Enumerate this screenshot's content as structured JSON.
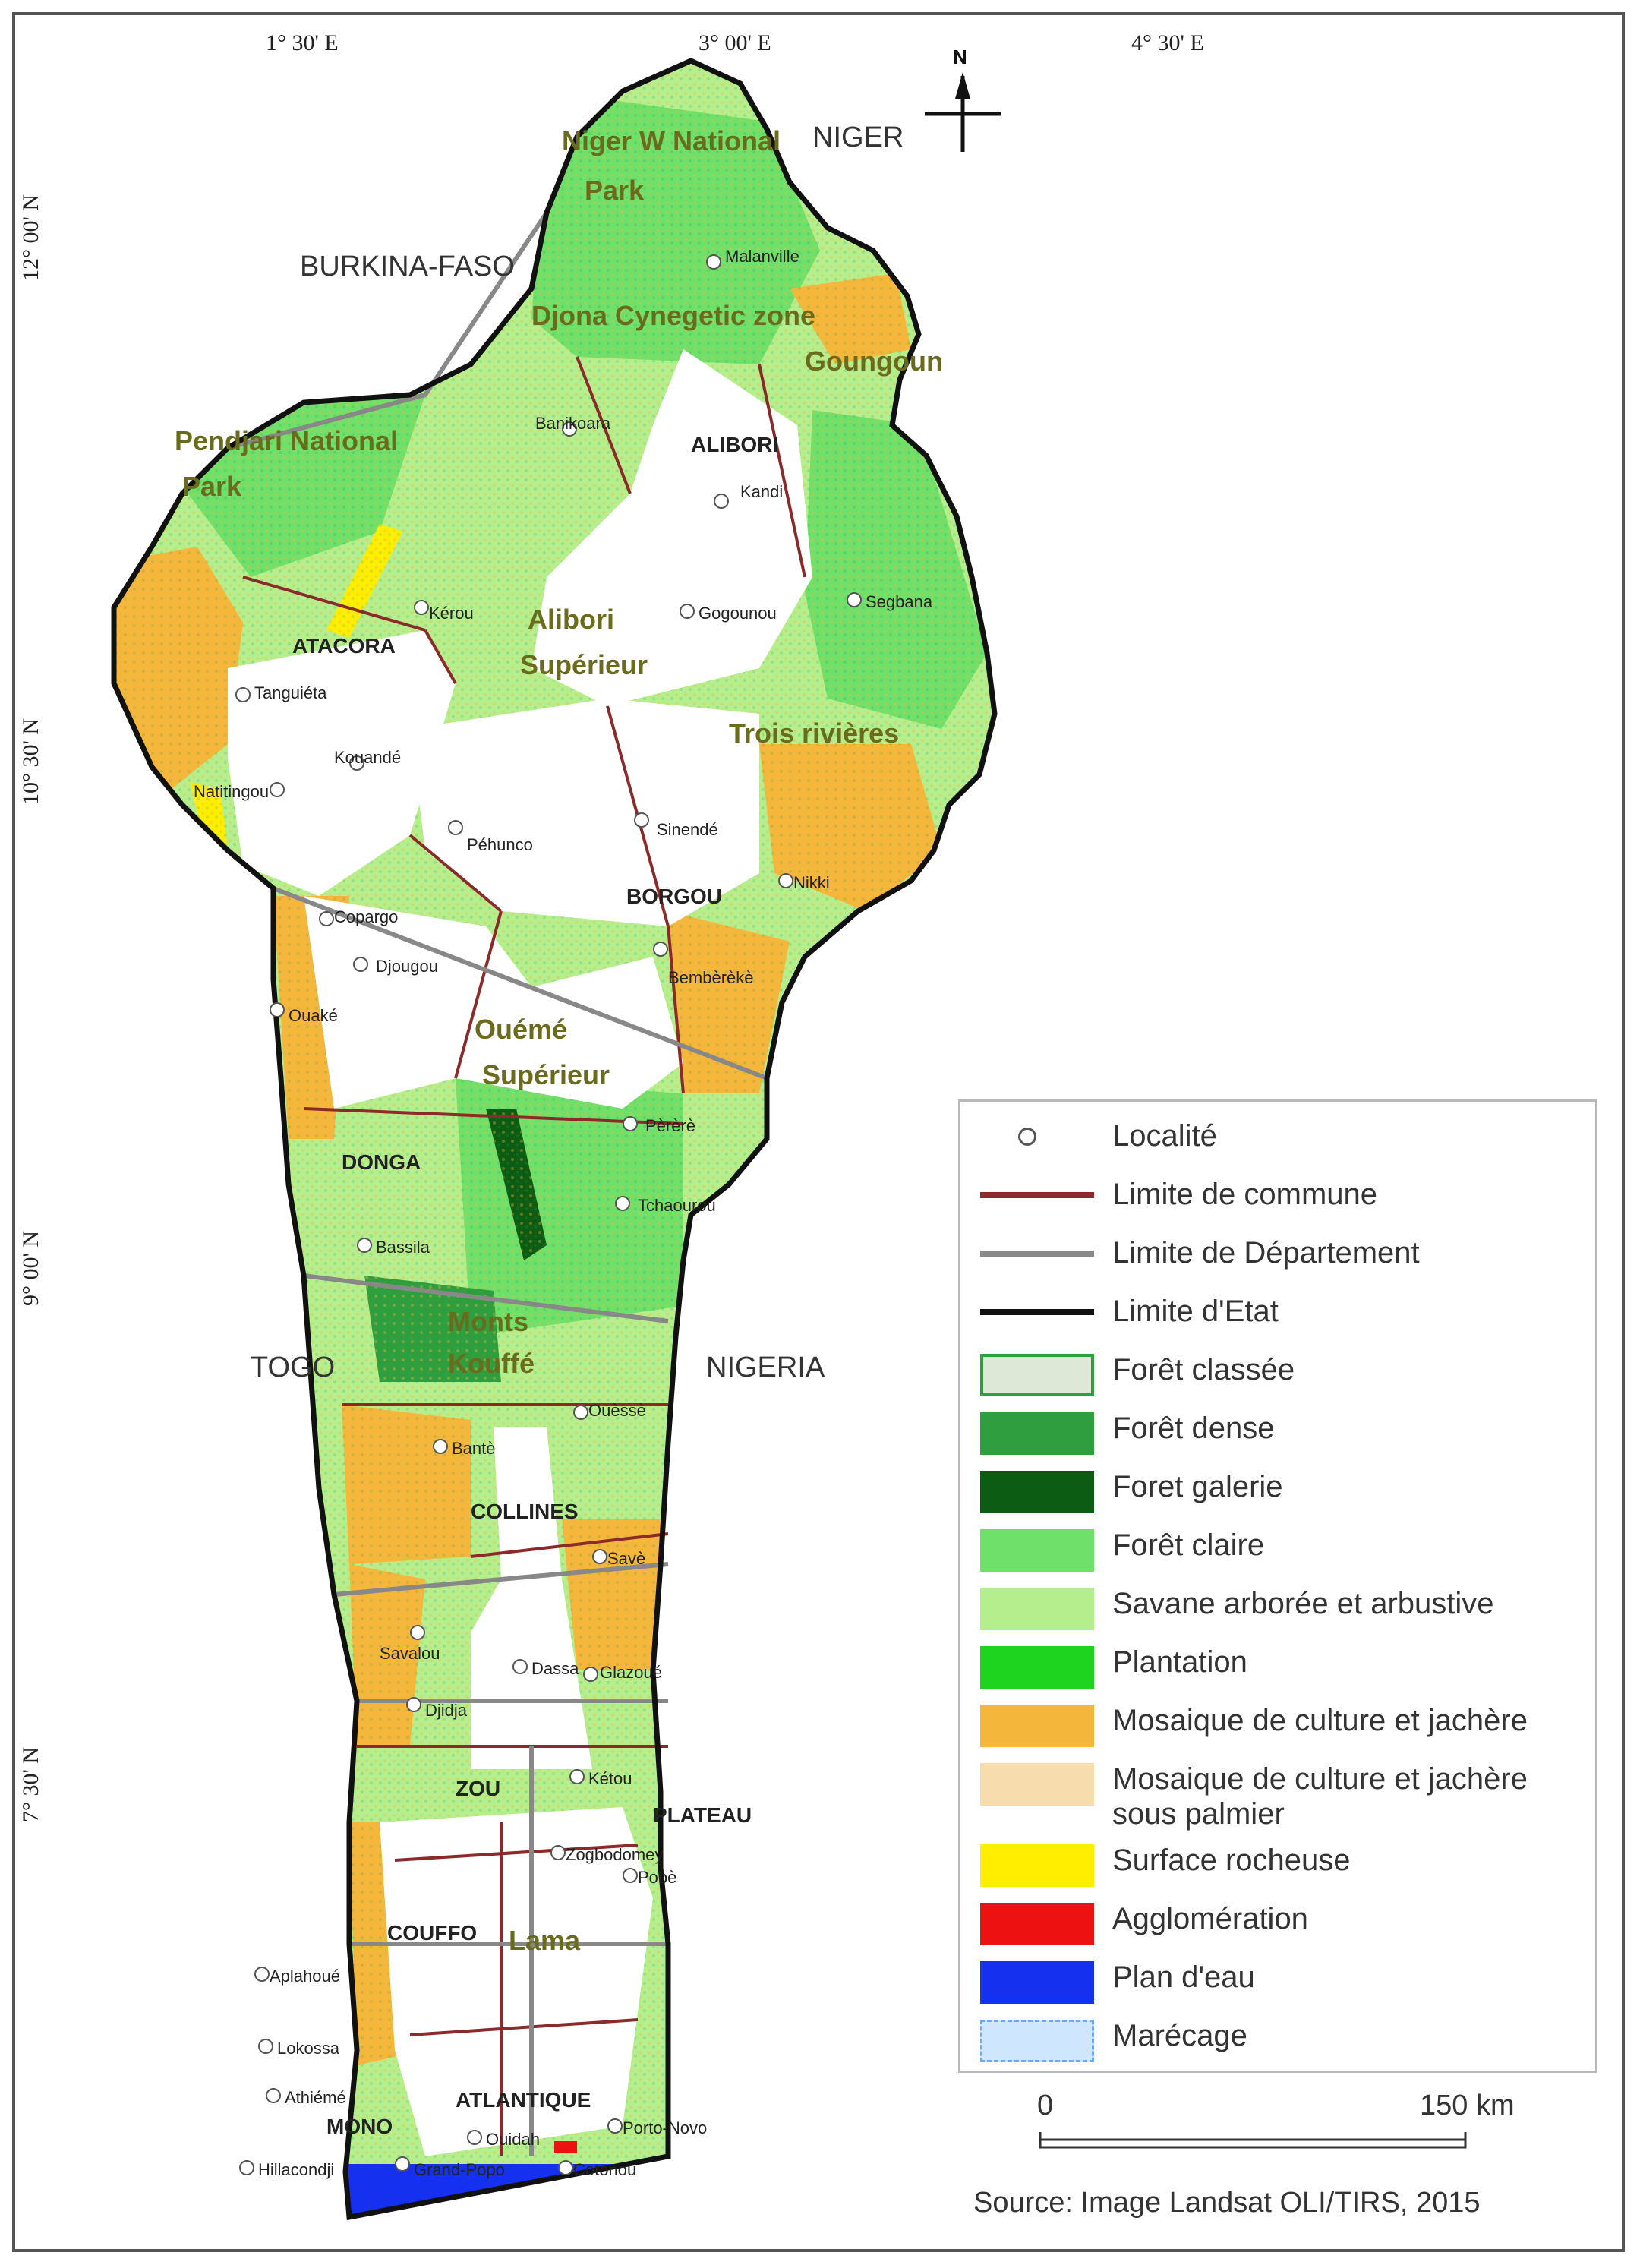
{
  "colors": {
    "foret_classee": "#dde9d6",
    "foret_dense": "#2f9e3e",
    "foret_galerie": "#0d5c14",
    "foret_claire": "#6fe06a",
    "savane": "#b5ef8d",
    "plantation": "#1fd41f",
    "mosaique": "#f5b63c",
    "mosaique_palmier": "#f7dcae",
    "surface_rocheuse": "#ffee00",
    "agglomeration": "#ee1111",
    "plan_eau": "#1530ee",
    "marecage": "#cfe6ff",
    "commune_line": "#8b2a2a",
    "department_line": "#888888",
    "state_line": "#111111"
  },
  "map": {
    "coords": {
      "lon": [
        "1° 30' E",
        "3° 00' E",
        "4° 30' E"
      ],
      "lat": [
        "12° 00' N",
        "10° 30' N",
        "9° 00' N",
        "7° 30' N"
      ]
    },
    "countries": [
      "BURKINA-FASO",
      "NIGER",
      "TOGO",
      "NIGERIA"
    ],
    "parks": [
      "Niger W National",
      "Park",
      "Pendjari National",
      "Park",
      "Alibori",
      "Supérieur",
      "Ouémé",
      "Supérieur",
      "Monts",
      "Kouffé",
      "Trois rivières",
      "Goungoun",
      "Djona Cynegetic zone",
      "Lama"
    ],
    "departments": [
      "ALIBORI",
      "ATACORA",
      "BORGOU",
      "DONGA",
      "COLLINES",
      "ZOU",
      "PLATEAU",
      "COUFFO",
      "ATLANTIQUE",
      "MONO"
    ],
    "towns": [
      "Malanville",
      "Banikoara",
      "Kandi",
      "Gogounou",
      "Segbana",
      "Kérou",
      "Tanguiéta",
      "Kouandé",
      "Natitingou",
      "Péhunco",
      "Sinendé",
      "Nikki",
      "Bembèrèkè",
      "Djougou",
      "Copargo",
      "Ouaké",
      "Pèrèrè",
      "Tchaourou",
      "Bassila",
      "Ouèssè",
      "Savè",
      "Dassa",
      "Glazoué",
      "Bantè",
      "Savalou",
      "Djidja",
      "Zogbodomey",
      "Kétou",
      "Pobè",
      "Aplahoué",
      "Lokossa",
      "Athiémé",
      "Grand-Popo",
      "Ouidah",
      "Porto-Novo",
      "Hillacondji",
      "Cotonou"
    ]
  },
  "compass": {
    "letter": "N"
  },
  "legend": {
    "items": [
      {
        "label": "Localité",
        "symbol": "point"
      },
      {
        "label": "Limite de commune",
        "symbol": "commune_line"
      },
      {
        "label": "Limite de Département",
        "symbol": "department_line"
      },
      {
        "label": "Limite d'Etat",
        "symbol": "state_line"
      },
      {
        "label": "Forêt classée",
        "symbol": "foret_classee"
      },
      {
        "label": "Forêt dense",
        "symbol": "foret_dense"
      },
      {
        "label": "Foret galerie",
        "symbol": "foret_galerie"
      },
      {
        "label": "Forêt claire",
        "symbol": "foret_claire"
      },
      {
        "label": "Savane arborée et arbustive",
        "symbol": "savane"
      },
      {
        "label": "Plantation",
        "symbol": "plantation"
      },
      {
        "label": "Mosaique de culture et jachère",
        "symbol": "mosaique"
      },
      {
        "label": "Mosaique de culture et jachère sous palmier",
        "symbol": "mosaique_palmier"
      },
      {
        "label": "Surface rocheuse",
        "symbol": "surface_rocheuse"
      },
      {
        "label": "Agglomération",
        "symbol": "agglomeration"
      },
      {
        "label": "Plan d'eau",
        "symbol": "plan_eau"
      },
      {
        "label": "Marécage",
        "symbol": "marecage"
      }
    ]
  },
  "scale": {
    "start": "0",
    "end": "150 km"
  },
  "source": "Source: Image Landsat OLI/TIRS, 2015"
}
